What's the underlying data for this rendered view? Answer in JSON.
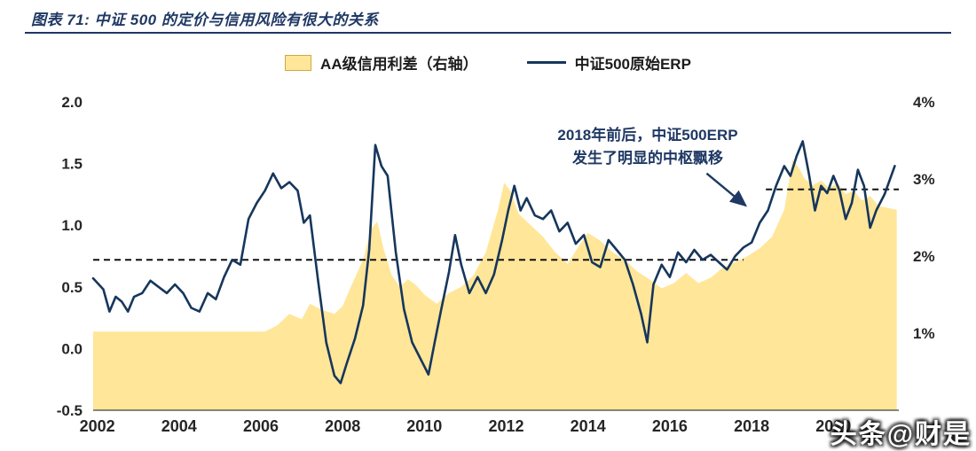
{
  "header": {
    "title": "图表 71:  中证 500 的定价与信用风险有很大的关系"
  },
  "legend": {
    "items": [
      {
        "label": "AA级信用利差（右轴）",
        "swatch": "area"
      },
      {
        "label": "中证500原始ERP",
        "swatch": "line"
      }
    ]
  },
  "annotation": {
    "line1": "2018年前后，中证500ERP",
    "line2": "发生了明显的中枢飘移"
  },
  "watermark": "头条@财是",
  "colors": {
    "navy": "#1F3864",
    "line": "#16365C",
    "area_fill": "#FFE699",
    "axis_text": "#262626",
    "dashed": "#111111"
  },
  "chart_data": {
    "type": "line+area",
    "title": "中证500的定价与信用风险有很大的关系",
    "grid": false,
    "legend_position": "top",
    "x_range": [
      2001.9,
      2021.6
    ],
    "x_ticks": [
      {
        "label": "2002",
        "v": 2002
      },
      {
        "label": "2004",
        "v": 2004
      },
      {
        "label": "2006",
        "v": 2006
      },
      {
        "label": "2008",
        "v": 2008
      },
      {
        "label": "2010",
        "v": 2010
      },
      {
        "label": "2012",
        "v": 2012
      },
      {
        "label": "2014",
        "v": 2014
      },
      {
        "label": "2016",
        "v": 2016
      },
      {
        "label": "2018",
        "v": 2018
      },
      {
        "label": "2020",
        "v": 2020
      }
    ],
    "left_axis": {
      "min": -0.5,
      "max": 2.0,
      "ticks": [
        {
          "label": "2.0",
          "v": 2.0
        },
        {
          "label": "1.5",
          "v": 1.5
        },
        {
          "label": "1.0",
          "v": 1.0
        },
        {
          "label": "0.5",
          "v": 0.5
        },
        {
          "label": "0.0",
          "v": 0.0
        },
        {
          "label": "-0.5",
          "v": -0.5
        }
      ]
    },
    "right_axis": {
      "min": 0,
      "max": 4,
      "ticks": [
        {
          "label": "4%",
          "v": 4
        },
        {
          "label": "3%",
          "v": 3
        },
        {
          "label": "2%",
          "v": 2
        },
        {
          "label": "1%",
          "v": 1
        }
      ]
    },
    "series": [
      {
        "name": "AA级信用利差（右轴）",
        "type": "area",
        "axis": "right",
        "x": [
          2001.9,
          2006.1,
          2006.4,
          2006.7,
          2007.0,
          2007.2,
          2007.5,
          2007.8,
          2008.0,
          2008.2,
          2008.5,
          2008.7,
          2008.85,
          2009.0,
          2009.2,
          2009.4,
          2009.6,
          2009.8,
          2010.0,
          2010.3,
          2010.6,
          2010.9,
          2011.2,
          2011.5,
          2011.8,
          2011.95,
          2012.1,
          2012.3,
          2012.6,
          2012.9,
          2013.2,
          2013.5,
          2013.8,
          2014.0,
          2014.3,
          2014.6,
          2014.9,
          2015.2,
          2015.5,
          2015.8,
          2016.1,
          2016.4,
          2016.7,
          2017.0,
          2017.3,
          2017.6,
          2017.9,
          2018.2,
          2018.5,
          2018.8,
          2019.0,
          2019.15,
          2019.3,
          2019.5,
          2019.7,
          2019.9,
          2020.1,
          2020.3,
          2020.5,
          2020.7,
          2020.9,
          2021.1,
          2021.55
        ],
        "values": [
          1.02,
          1.02,
          1.1,
          1.25,
          1.18,
          1.38,
          1.3,
          1.25,
          1.35,
          1.6,
          1.95,
          2.35,
          2.45,
          2.1,
          1.75,
          1.6,
          1.7,
          1.62,
          1.5,
          1.38,
          1.52,
          1.6,
          1.75,
          2.05,
          2.6,
          2.95,
          2.85,
          2.55,
          2.4,
          2.25,
          2.05,
          1.9,
          2.15,
          2.3,
          2.2,
          2.05,
          1.95,
          1.8,
          1.7,
          1.58,
          1.65,
          1.78,
          1.65,
          1.72,
          1.85,
          1.92,
          2.0,
          2.1,
          2.25,
          2.6,
          3.25,
          3.15,
          3.0,
          2.92,
          2.98,
          2.88,
          2.95,
          2.8,
          2.85,
          2.72,
          2.78,
          2.65,
          2.6
        ]
      },
      {
        "name": "中证500原始ERP",
        "type": "line",
        "axis": "left",
        "x": [
          2001.9,
          2002.15,
          2002.3,
          2002.45,
          2002.6,
          2002.75,
          2002.9,
          2003.1,
          2003.3,
          2003.5,
          2003.7,
          2003.9,
          2004.1,
          2004.3,
          2004.5,
          2004.7,
          2004.9,
          2005.1,
          2005.3,
          2005.5,
          2005.7,
          2005.9,
          2006.1,
          2006.3,
          2006.5,
          2006.7,
          2006.9,
          2007.05,
          2007.2,
          2007.4,
          2007.6,
          2007.8,
          2007.95,
          2008.1,
          2008.3,
          2008.5,
          2008.65,
          2008.8,
          2008.95,
          2009.1,
          2009.3,
          2009.5,
          2009.7,
          2009.9,
          2010.1,
          2010.25,
          2010.4,
          2010.6,
          2010.75,
          2010.9,
          2011.1,
          2011.3,
          2011.5,
          2011.7,
          2011.9,
          2012.05,
          2012.2,
          2012.35,
          2012.5,
          2012.7,
          2012.9,
          2013.1,
          2013.3,
          2013.5,
          2013.7,
          2013.9,
          2014.1,
          2014.3,
          2014.5,
          2014.7,
          2014.9,
          2015.1,
          2015.3,
          2015.45,
          2015.6,
          2015.8,
          2016.0,
          2016.2,
          2016.4,
          2016.6,
          2016.8,
          2017.0,
          2017.2,
          2017.4,
          2017.6,
          2017.8,
          2018.0,
          2018.2,
          2018.4,
          2018.6,
          2018.8,
          2018.95,
          2019.1,
          2019.25,
          2019.4,
          2019.55,
          2019.7,
          2019.85,
          2020.0,
          2020.15,
          2020.3,
          2020.45,
          2020.6,
          2020.75,
          2020.9,
          2021.05,
          2021.25,
          2021.5
        ],
        "values": [
          0.57,
          0.48,
          0.3,
          0.42,
          0.38,
          0.3,
          0.42,
          0.45,
          0.55,
          0.5,
          0.45,
          0.52,
          0.45,
          0.33,
          0.3,
          0.45,
          0.4,
          0.58,
          0.72,
          0.68,
          1.05,
          1.18,
          1.28,
          1.42,
          1.3,
          1.35,
          1.28,
          1.02,
          1.08,
          0.55,
          0.05,
          -0.22,
          -0.28,
          -0.12,
          0.08,
          0.35,
          0.8,
          1.65,
          1.48,
          1.4,
          0.78,
          0.32,
          0.05,
          -0.08,
          -0.21,
          0.05,
          0.3,
          0.62,
          0.92,
          0.68,
          0.45,
          0.58,
          0.45,
          0.6,
          0.88,
          1.12,
          1.32,
          1.12,
          1.22,
          1.08,
          1.05,
          1.12,
          0.95,
          1.02,
          0.85,
          0.92,
          0.7,
          0.66,
          0.88,
          0.8,
          0.72,
          0.52,
          0.28,
          0.05,
          0.52,
          0.68,
          0.58,
          0.78,
          0.7,
          0.8,
          0.72,
          0.76,
          0.7,
          0.64,
          0.75,
          0.82,
          0.86,
          1.02,
          1.12,
          1.32,
          1.48,
          1.4,
          1.56,
          1.68,
          1.42,
          1.12,
          1.32,
          1.26,
          1.4,
          1.28,
          1.05,
          1.18,
          1.45,
          1.32,
          0.98,
          1.12,
          1.25,
          1.48
        ]
      }
    ],
    "reference_lines": [
      {
        "axis": "left",
        "value": 0.72,
        "x_start": 2001.9,
        "x_end": 2017.8
      },
      {
        "axis": "left",
        "value": 1.29,
        "x_start": 2018.35,
        "x_end": 2021.6
      }
    ],
    "annotation_arrow": {
      "from": {
        "x": 2016.9,
        "y": 1.42
      },
      "to": {
        "x": 2017.85,
        "y": 1.16
      }
    }
  }
}
